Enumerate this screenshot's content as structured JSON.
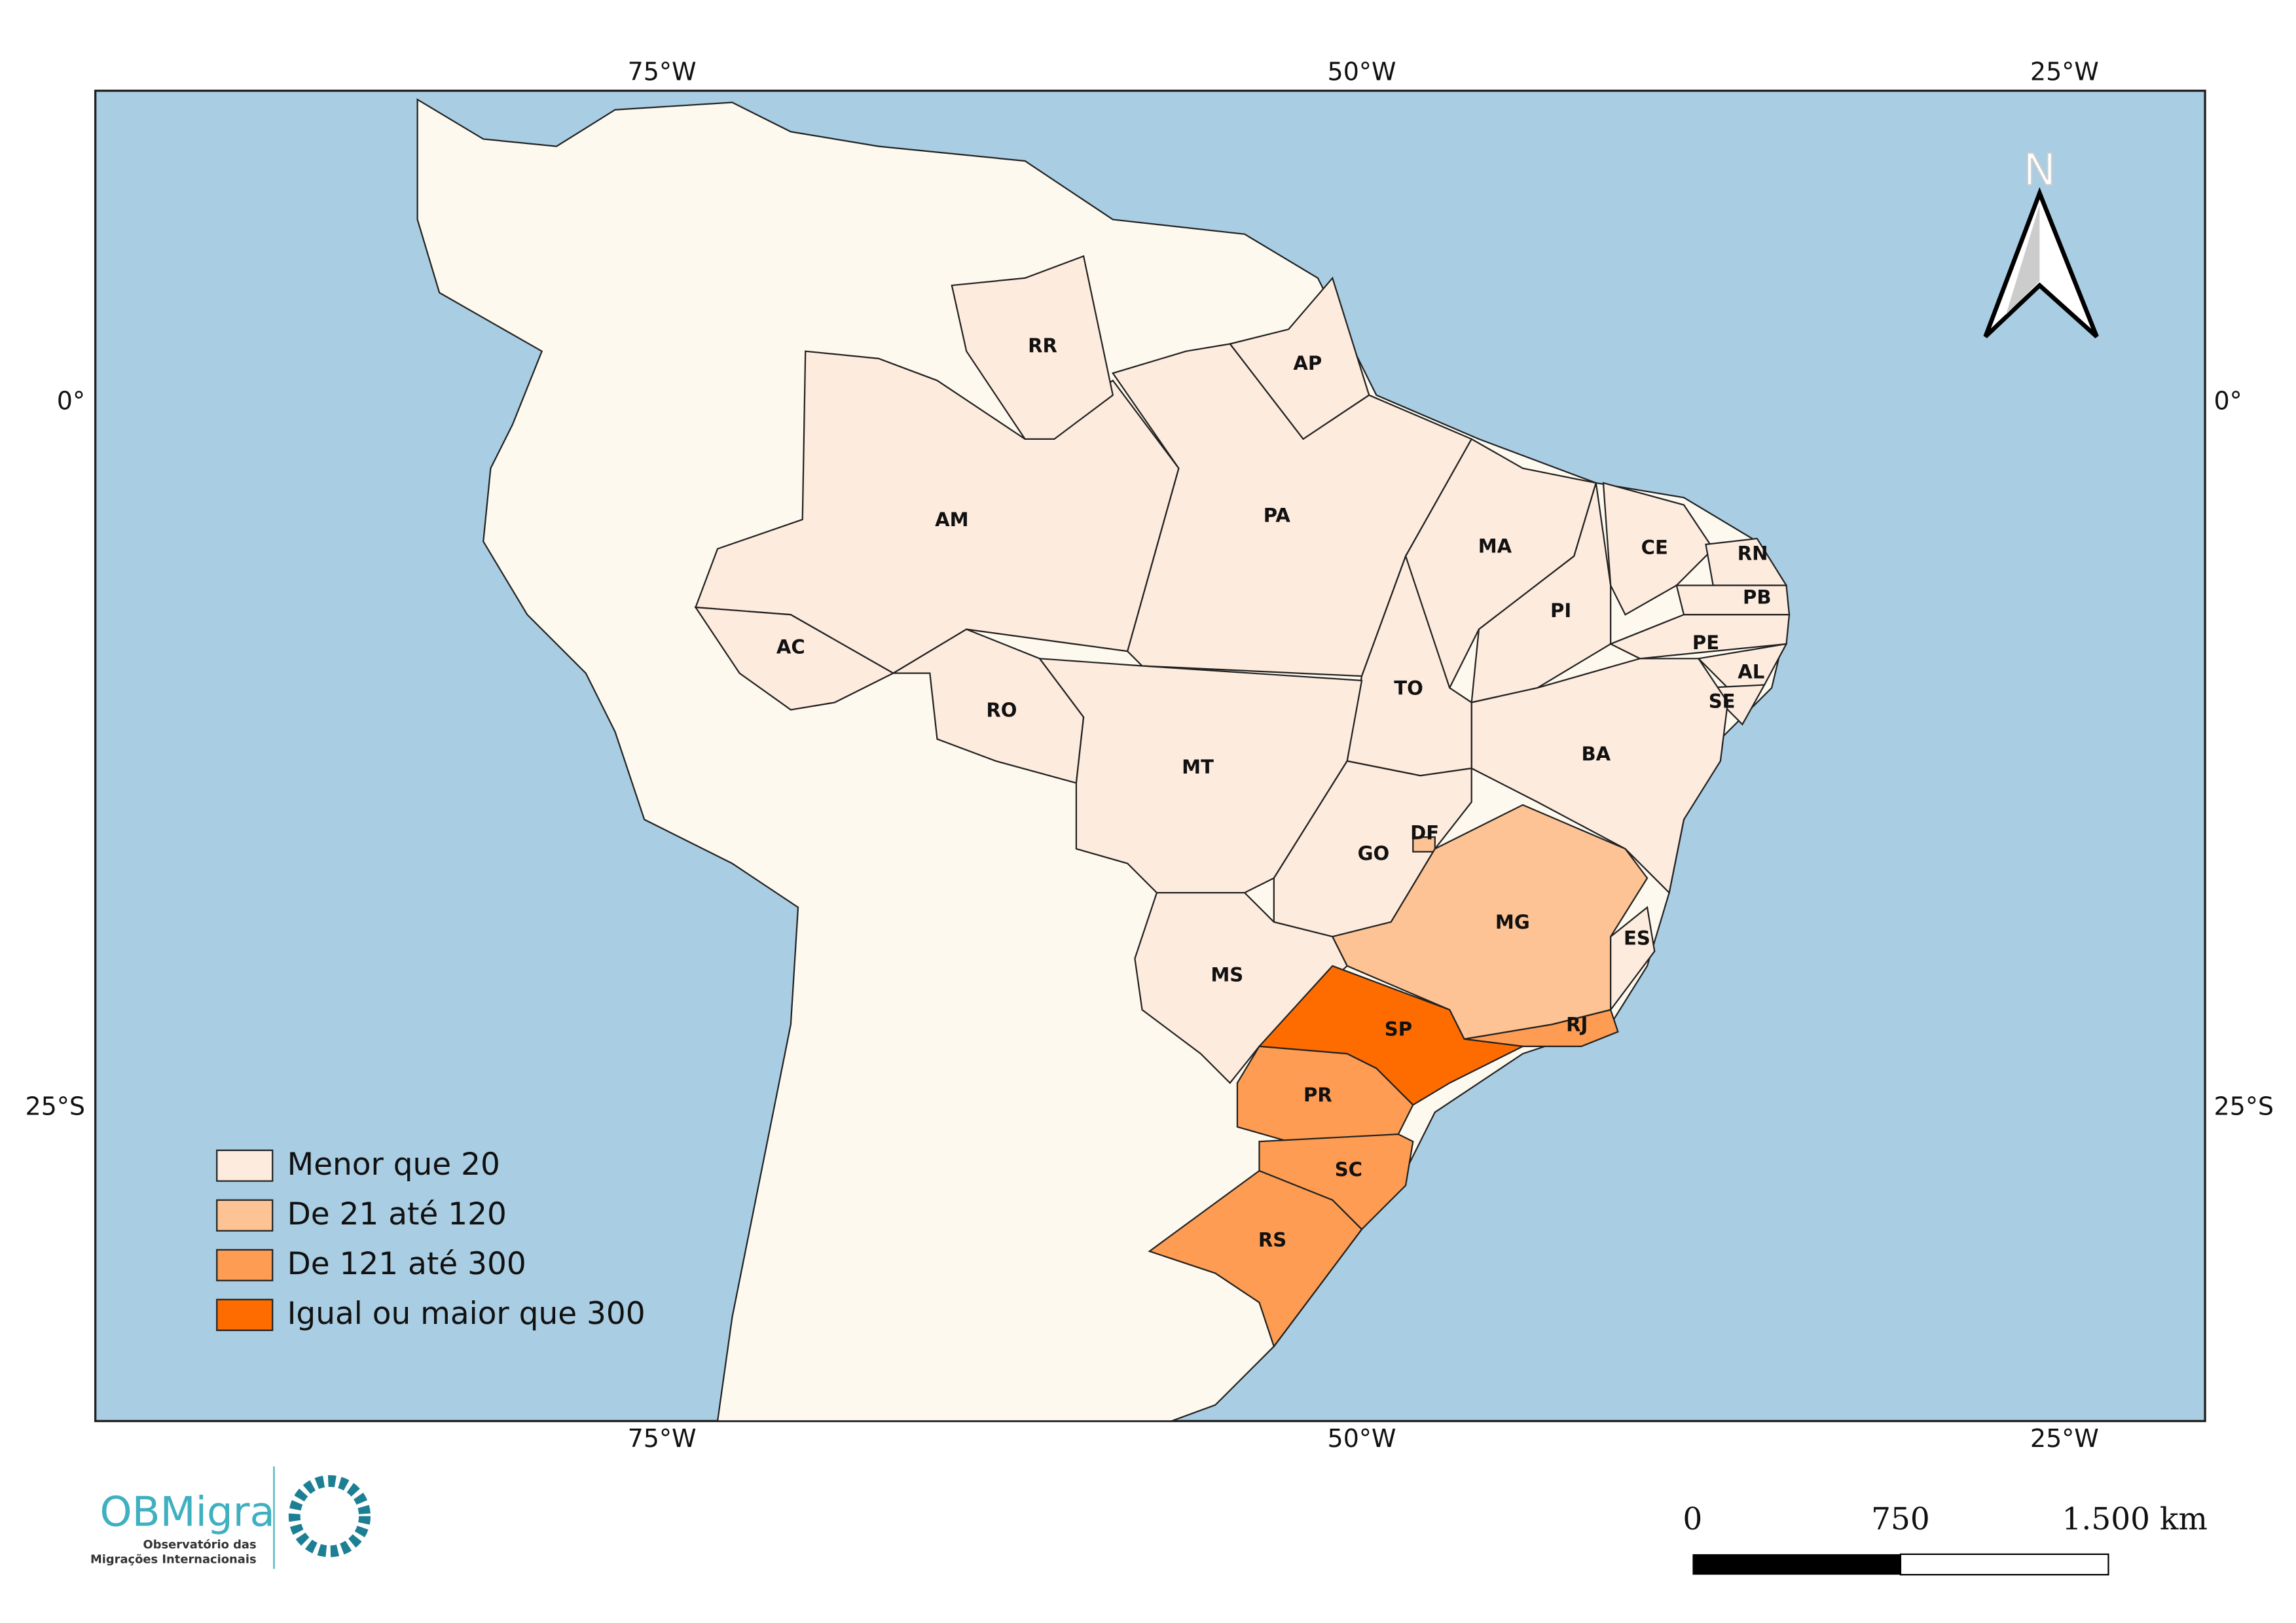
{
  "map": {
    "states": [
      {
        "label": "AM",
        "color": "#fdebde"
      },
      {
        "label": "RR",
        "color": "#fdebde"
      },
      {
        "label": "AP",
        "color": "#fdebde"
      },
      {
        "label": "PA",
        "color": "#fdebde"
      },
      {
        "label": "MA",
        "color": "#fdebde"
      },
      {
        "label": "PI",
        "color": "#fdebde"
      },
      {
        "label": "CE",
        "color": "#fdebde"
      },
      {
        "label": "RN",
        "color": "#fdebde"
      },
      {
        "label": "PB",
        "color": "#fdebde"
      },
      {
        "label": "PE",
        "color": "#fdebde"
      },
      {
        "label": "AL",
        "color": "#fdebde"
      },
      {
        "label": "SE",
        "color": "#fdebde"
      },
      {
        "label": "BA",
        "color": "#fdebde"
      },
      {
        "label": "TO",
        "color": "#fdebde"
      },
      {
        "label": "AC",
        "color": "#fdebde"
      },
      {
        "label": "RO",
        "color": "#fdebde"
      },
      {
        "label": "MT",
        "color": "#fdebde"
      },
      {
        "label": "GO",
        "color": "#fdebde"
      },
      {
        "label": "DF",
        "color": "#fdc394"
      },
      {
        "label": "MG",
        "color": "#fdc394"
      },
      {
        "label": "ES",
        "color": "#fdebde"
      },
      {
        "label": "RJ",
        "color": "#fd9c52"
      },
      {
        "label": "MS",
        "color": "#fdebde"
      },
      {
        "label": "SP",
        "color": "#fe6c00"
      },
      {
        "label": "PR",
        "color": "#fd9c52"
      },
      {
        "label": "SC",
        "color": "#fd9c52"
      },
      {
        "label": "RS",
        "color": "#fd9c52"
      }
    ],
    "legend": [
      {
        "label": "Menor que 20",
        "color": "#fdebde"
      },
      {
        "label": "De 21 até 120",
        "color": "#fdc394"
      },
      {
        "label": "De 121 até 300",
        "color": "#fd9c52"
      },
      {
        "label": "Igual ou maior que 300",
        "color": "#fe6c00"
      }
    ],
    "graticule": {
      "longitudes": [
        "75°W",
        "50°W",
        "25°W"
      ],
      "latitudes": [
        "0°",
        "25°S"
      ]
    },
    "north": "N",
    "scale_bar": [
      "0",
      "750",
      "1.500 km"
    ],
    "logo": {
      "name": "OBMigra",
      "subtitle_1": "Observatório das",
      "subtitle_2": "Migrações Internacionais"
    }
  }
}
